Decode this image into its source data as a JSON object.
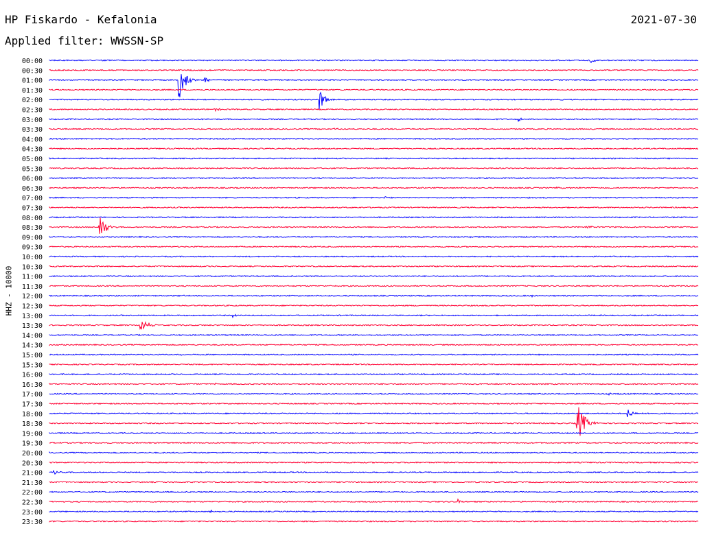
{
  "header": {
    "station": "HP Fiskardo - Kefalonia",
    "date": "2021-07-30",
    "filter_label": "Applied filter: WWSSN-SP",
    "channel_label": "HHZ - 10000"
  },
  "colors": {
    "blue": "#0000ff",
    "red": "#ff0033"
  },
  "chart_data": {
    "type": "line",
    "title": "HP Fiskardo - Kefalonia",
    "date": "2021-07-30",
    "ylabel": "HHZ - 10000",
    "rows": [
      "00:00",
      "00:30",
      "01:00",
      "01:30",
      "02:00",
      "02:30",
      "03:00",
      "03:30",
      "04:00",
      "04:30",
      "05:00",
      "05:30",
      "06:00",
      "06:30",
      "07:00",
      "07:30",
      "08:00",
      "08:30",
      "09:00",
      "09:30",
      "10:00",
      "10:30",
      "11:00",
      "11:30",
      "12:00",
      "12:30",
      "13:00",
      "13:30",
      "14:00",
      "14:30",
      "15:00",
      "15:30",
      "16:00",
      "16:30",
      "17:00",
      "17:30",
      "18:00",
      "18:30",
      "19:00",
      "19:30",
      "20:00",
      "20:30",
      "21:00",
      "21:30",
      "22:00",
      "22:30",
      "23:00",
      "23:30"
    ],
    "row_colors": [
      "blue",
      "red"
    ],
    "trace_minutes": 30,
    "events": [
      {
        "row": "00:00",
        "minute": 25.0,
        "amp": 0.45,
        "dur": 0.8
      },
      {
        "row": "01:00",
        "minute": 6.0,
        "amp": 2.6,
        "dur": 1.0
      },
      {
        "row": "01:00",
        "minute": 7.2,
        "amp": 0.4,
        "dur": 0.6
      },
      {
        "row": "02:00",
        "minute": 12.5,
        "amp": 1.6,
        "dur": 0.8
      },
      {
        "row": "02:30",
        "minute": 7.6,
        "amp": 0.3,
        "dur": 0.8
      },
      {
        "row": "03:00",
        "minute": 21.7,
        "amp": 0.25,
        "dur": 0.4
      },
      {
        "row": "03:30",
        "minute": 13.2,
        "amp": 0.25,
        "dur": 0.7
      },
      {
        "row": "06:30",
        "minute": 23.4,
        "amp": 0.1,
        "dur": 4.0
      },
      {
        "row": "07:00",
        "minute": 15.5,
        "amp": 0.15,
        "dur": 0.6
      },
      {
        "row": "08:30",
        "minute": 2.3,
        "amp": 2.2,
        "dur": 1.0
      },
      {
        "row": "08:30",
        "minute": 24.8,
        "amp": 0.25,
        "dur": 1.5
      },
      {
        "row": "09:00",
        "minute": 19.3,
        "amp": 0.2,
        "dur": 0.4
      },
      {
        "row": "10:00",
        "minute": 10.5,
        "amp": 0.15,
        "dur": 0.5
      },
      {
        "row": "12:00",
        "minute": 22.3,
        "amp": 0.2,
        "dur": 0.6
      },
      {
        "row": "12:00",
        "minute": 6.2,
        "amp": 0.2,
        "dur": 0.4
      },
      {
        "row": "13:00",
        "minute": 8.5,
        "amp": 0.25,
        "dur": 0.6
      },
      {
        "row": "13:30",
        "minute": 4.2,
        "amp": 1.0,
        "dur": 1.3
      },
      {
        "row": "15:00",
        "minute": 6.1,
        "amp": 0.15,
        "dur": 0.5
      },
      {
        "row": "16:30",
        "minute": 7.7,
        "amp": 0.15,
        "dur": 0.3
      },
      {
        "row": "17:00",
        "minute": 8.6,
        "amp": 0.12,
        "dur": 0.7
      },
      {
        "row": "17:00",
        "minute": 25.9,
        "amp": 0.12,
        "dur": 0.9
      },
      {
        "row": "18:00",
        "minute": 26.7,
        "amp": 0.8,
        "dur": 0.8
      },
      {
        "row": "18:30",
        "minute": 24.4,
        "amp": 3.0,
        "dur": 1.2
      },
      {
        "row": "21:00",
        "minute": 0.2,
        "amp": 0.3,
        "dur": 0.7
      },
      {
        "row": "22:00",
        "minute": 0.5,
        "amp": 0.3,
        "dur": 0.3
      },
      {
        "row": "22:30",
        "minute": 18.9,
        "amp": 0.6,
        "dur": 0.3
      },
      {
        "row": "23:00",
        "minute": 7.4,
        "amp": 0.25,
        "dur": 0.5
      }
    ]
  }
}
